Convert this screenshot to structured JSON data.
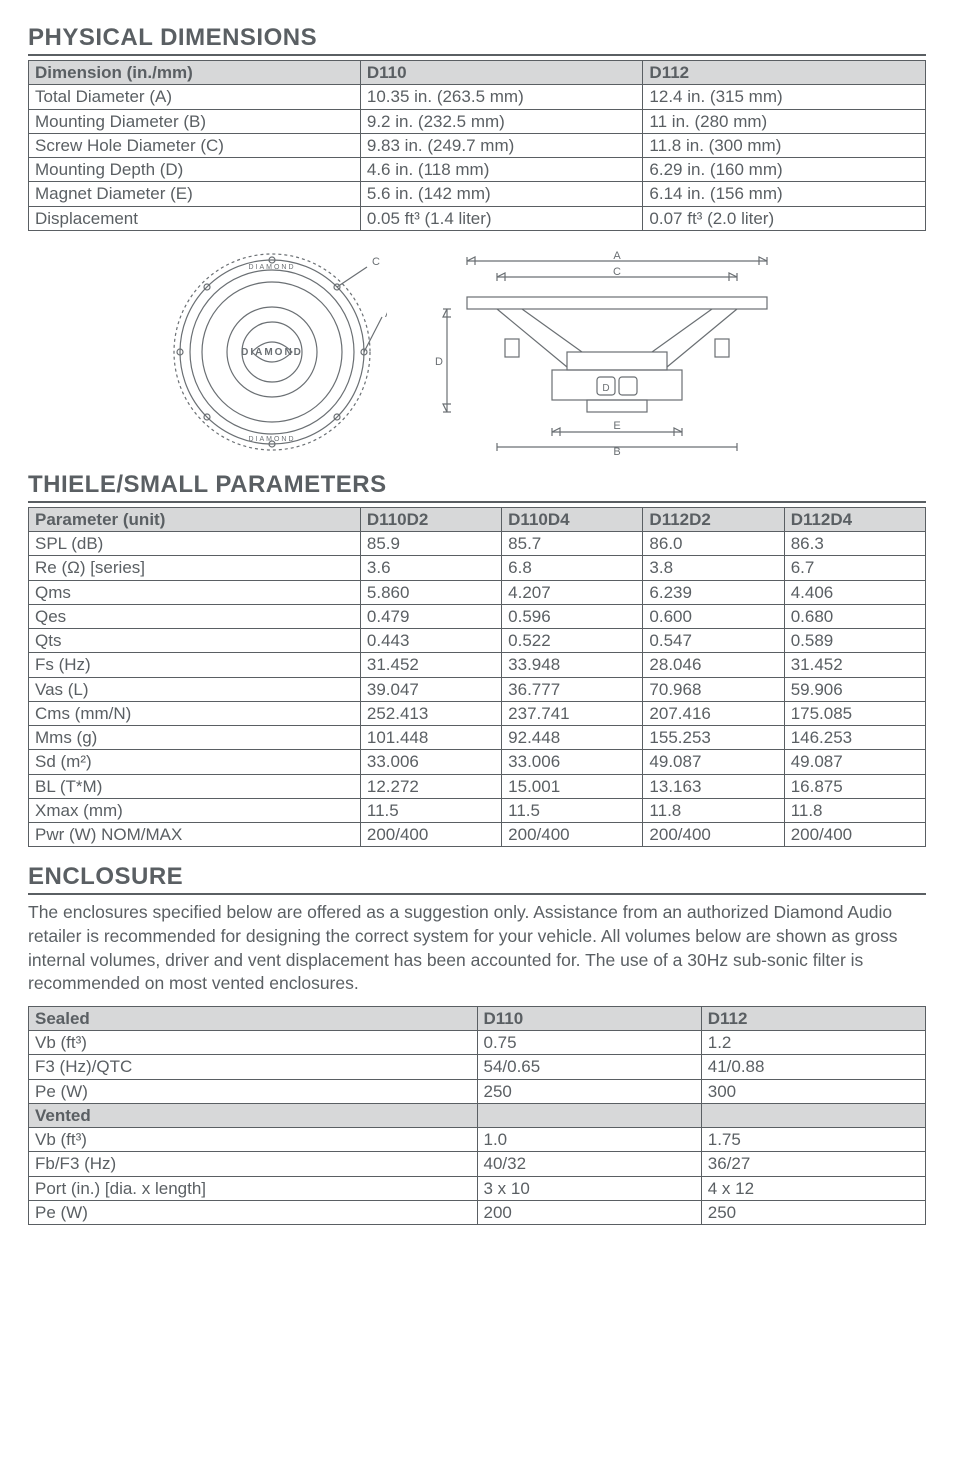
{
  "colors": {
    "text": "#5a5f63",
    "border": "#5a5f63",
    "header_bg": "#d7d8d9",
    "page_bg": "#ffffff"
  },
  "sections": {
    "physical_title": "PHYSICAL DIMENSIONS",
    "thiele_title": "THIELE/SMALL PARAMETERS",
    "enclosure_title": "ENCLOSURE"
  },
  "physical": {
    "col_widths": [
      "37%",
      "31.5%",
      "31.5%"
    ],
    "headers": [
      "Dimension (in./mm)",
      "D110",
      "D112"
    ],
    "rows": [
      [
        "Total Diameter (A)",
        "10.35 in. (263.5 mm)",
        "12.4 in. (315 mm)"
      ],
      [
        "Mounting Diameter (B)",
        "9.2 in. (232.5 mm)",
        "11 in. (280 mm)"
      ],
      [
        "Screw Hole Diameter (C)",
        "9.83 in. (249.7 mm)",
        "11.8 in. (300 mm)"
      ],
      [
        "Mounting Depth (D)",
        "4.6 in. (118 mm)",
        "6.29 in. (160 mm)"
      ],
      [
        "Magnet Diameter (E)",
        "5.6 in. (142 mm)",
        "6.14 in. (156 mm)"
      ],
      [
        "Displacement",
        "0.05 ft³ (1.4 liter)",
        "0.07 ft³ (2.0 liter)"
      ]
    ]
  },
  "thiele": {
    "col_widths": [
      "37%",
      "15.75%",
      "15.75%",
      "15.75%",
      "15.75%"
    ],
    "headers": [
      "Parameter (unit)",
      "D110D2",
      "D110D4",
      "D112D2",
      "D112D4"
    ],
    "rows": [
      [
        "SPL (dB)",
        "85.9",
        "85.7",
        "86.0",
        "86.3"
      ],
      [
        "Re (Ω) [series]",
        "3.6",
        "6.8",
        "3.8",
        "6.7"
      ],
      [
        "Qms",
        "5.860",
        "4.207",
        "6.239",
        "4.406"
      ],
      [
        "Qes",
        "0.479",
        "0.596",
        "0.600",
        "0.680"
      ],
      [
        "Qts",
        "0.443",
        "0.522",
        "0.547",
        "0.589"
      ],
      [
        "Fs (Hz)",
        "31.452",
        "33.948",
        "28.046",
        "31.452"
      ],
      [
        "Vas (L)",
        "39.047",
        "36.777",
        "70.968",
        "59.906"
      ],
      [
        "Cms (mm/N)",
        "252.413",
        "237.741",
        "207.416",
        "175.085"
      ],
      [
        "Mms (g)",
        "101.448",
        "92.448",
        "155.253",
        "146.253"
      ],
      [
        "Sd (m²)",
        "33.006",
        "33.006",
        "49.087",
        "49.087"
      ],
      [
        "BL (T*M)",
        "12.272",
        "15.001",
        "13.163",
        "16.875"
      ],
      [
        "Xmax (mm)",
        "11.5",
        "11.5",
        "11.8",
        "11.8"
      ],
      [
        "Pwr (W) NOM/MAX",
        "200/400",
        "200/400",
        "200/400",
        "200/400"
      ]
    ]
  },
  "enclosure": {
    "paragraph": "The enclosures specified below are offered as a suggestion only. Assistance from an authorized Diamond Audio retailer is recommended for designing the correct system for your vehicle. All volumes below are shown as gross internal volumes, driver and vent displacement has been accounted for. The use of a 30Hz sub-sonic filter is recommended on most vented enclosures.",
    "col_widths": [
      "50%",
      "25%",
      "25%"
    ],
    "sealed_header": [
      "Sealed",
      "D110",
      "D112"
    ],
    "sealed_rows": [
      [
        "Vb (ft³)",
        "0.75",
        "1.2"
      ],
      [
        "F3 (Hz)/QTC",
        "54/0.65",
        "41/0.88"
      ],
      [
        "Pe (W)",
        "250",
        "300"
      ]
    ],
    "vented_header": [
      "Vented",
      "",
      ""
    ],
    "vented_rows": [
      [
        "Vb (ft³)",
        "1.0",
        "1.75"
      ],
      [
        "Fb/F3 (Hz)",
        "40/32",
        "36/27"
      ],
      [
        "Port (in.) [dia. x length]",
        "3 x 10",
        "4 x 12"
      ],
      [
        "Pe (W)",
        "200",
        "250"
      ]
    ]
  },
  "diagram": {
    "labels": {
      "a": "A",
      "b": "B",
      "c": "C",
      "d": "D",
      "e": "E"
    },
    "brand_top": "DIAMOND",
    "brand_center": "DIAMOND",
    "brand_bottom": "DIAMOND",
    "stroke_color": "#6a6f73",
    "stroke_width": 1.2,
    "font_size_label": 11
  }
}
